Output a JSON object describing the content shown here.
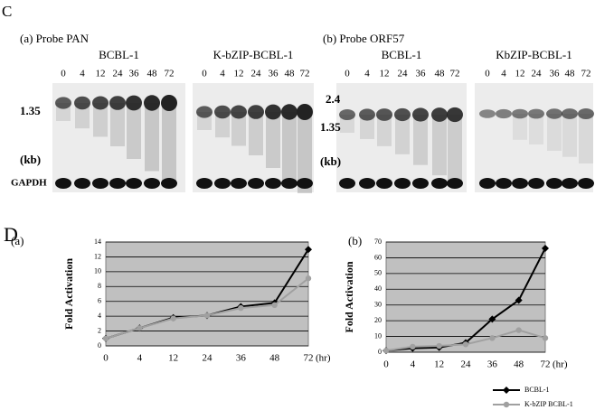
{
  "panel_c": {
    "label": "C",
    "left": {
      "title": "(a) Probe PAN",
      "groups": [
        "BCBL-1",
        "K-bZIP-BCBL-1"
      ],
      "lanes": [
        "0",
        "4",
        "12",
        "24",
        "36",
        "48",
        "72"
      ],
      "size_markers": [
        "1.35"
      ],
      "unit": "(kb)",
      "control": "GAPDH"
    },
    "right": {
      "title": "(b) Probe ORF57",
      "groups": [
        "BCBL-1",
        "KbZIP-BCBL-1"
      ],
      "lanes": [
        "0",
        "4",
        "12",
        "24",
        "36",
        "48",
        "72"
      ],
      "size_markers": [
        "2.4",
        "1.35"
      ],
      "unit": "(kb)"
    }
  },
  "panel_d_label": "D",
  "chart_data": [
    {
      "type": "line",
      "label": "(a)",
      "y_label": "Fold Activation",
      "x_unit": "(hr)",
      "categories": [
        "0",
        "4",
        "12",
        "24",
        "36",
        "48",
        "72"
      ],
      "ylim": [
        0,
        14
      ],
      "yticks": [
        0,
        2,
        4,
        6,
        8,
        10,
        12,
        14
      ],
      "grid": true,
      "series": [
        {
          "name": "BCBL-1",
          "color": "#000000",
          "marker": "diamond",
          "values": [
            1,
            2.4,
            3.8,
            4.1,
            5.3,
            5.8,
            13
          ]
        },
        {
          "name": "K-bZIP BCBL-1",
          "color": "#a0a0a0",
          "marker": "circle",
          "values": [
            1,
            2.4,
            3.7,
            4.1,
            5.1,
            5.5,
            9.1
          ]
        }
      ]
    },
    {
      "type": "line",
      "label": "(b)",
      "y_label": "Fold Activation",
      "x_unit": "(hr)",
      "categories": [
        "0",
        "4",
        "12",
        "24",
        "36",
        "48",
        "72"
      ],
      "ylim": [
        0,
        70
      ],
      "yticks": [
        0,
        10,
        20,
        30,
        40,
        50,
        60,
        70
      ],
      "grid": true,
      "series": [
        {
          "name": "BCBL-1",
          "color": "#000000",
          "marker": "diamond",
          "values": [
            1,
            2.5,
            3,
            6,
            21,
            33,
            66
          ]
        },
        {
          "name": "K-bZIP BCBL-1",
          "color": "#a0a0a0",
          "marker": "circle",
          "values": [
            1,
            3.5,
            4,
            5,
            9,
            14,
            9
          ]
        }
      ]
    }
  ]
}
